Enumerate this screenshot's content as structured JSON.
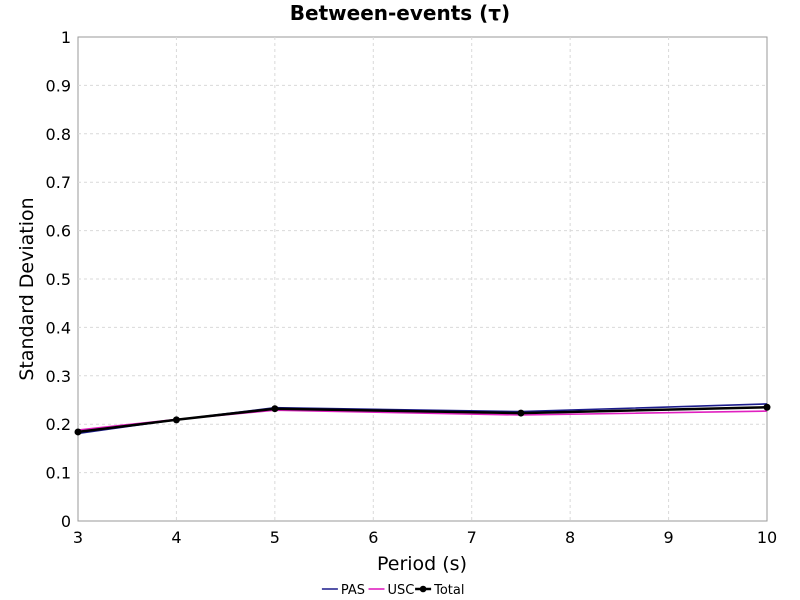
{
  "chart_data": {
    "type": "line",
    "title": "Between-events (τ)",
    "xlabel": "Period (s)",
    "ylabel": "Standard Deviation",
    "xlim": [
      3,
      10
    ],
    "ylim": [
      0,
      1
    ],
    "x_ticks": [
      "3",
      "4",
      "5",
      "6",
      "7",
      "8",
      "9",
      "10"
    ],
    "y_ticks": [
      "0",
      "0.1",
      "0.2",
      "0.3",
      "0.4",
      "0.5",
      "0.6",
      "0.7",
      "0.8",
      "0.9",
      "1"
    ],
    "grid": true,
    "legend_position": "bottom",
    "series": [
      {
        "name": "PAS",
        "color": "#1c1c8c",
        "markers": false,
        "x": [
          3,
          4,
          5,
          7.5,
          10
        ],
        "y": [
          0.181,
          0.209,
          0.234,
          0.226,
          0.242
        ]
      },
      {
        "name": "USC",
        "color": "#e020c0",
        "markers": false,
        "x": [
          3,
          4,
          5,
          7.5,
          10
        ],
        "y": [
          0.188,
          0.21,
          0.229,
          0.219,
          0.227
        ]
      },
      {
        "name": "Total",
        "color": "#000000",
        "markers": true,
        "x": [
          3,
          4,
          5,
          7.5,
          10
        ],
        "y": [
          0.184,
          0.209,
          0.232,
          0.223,
          0.235
        ]
      }
    ]
  }
}
